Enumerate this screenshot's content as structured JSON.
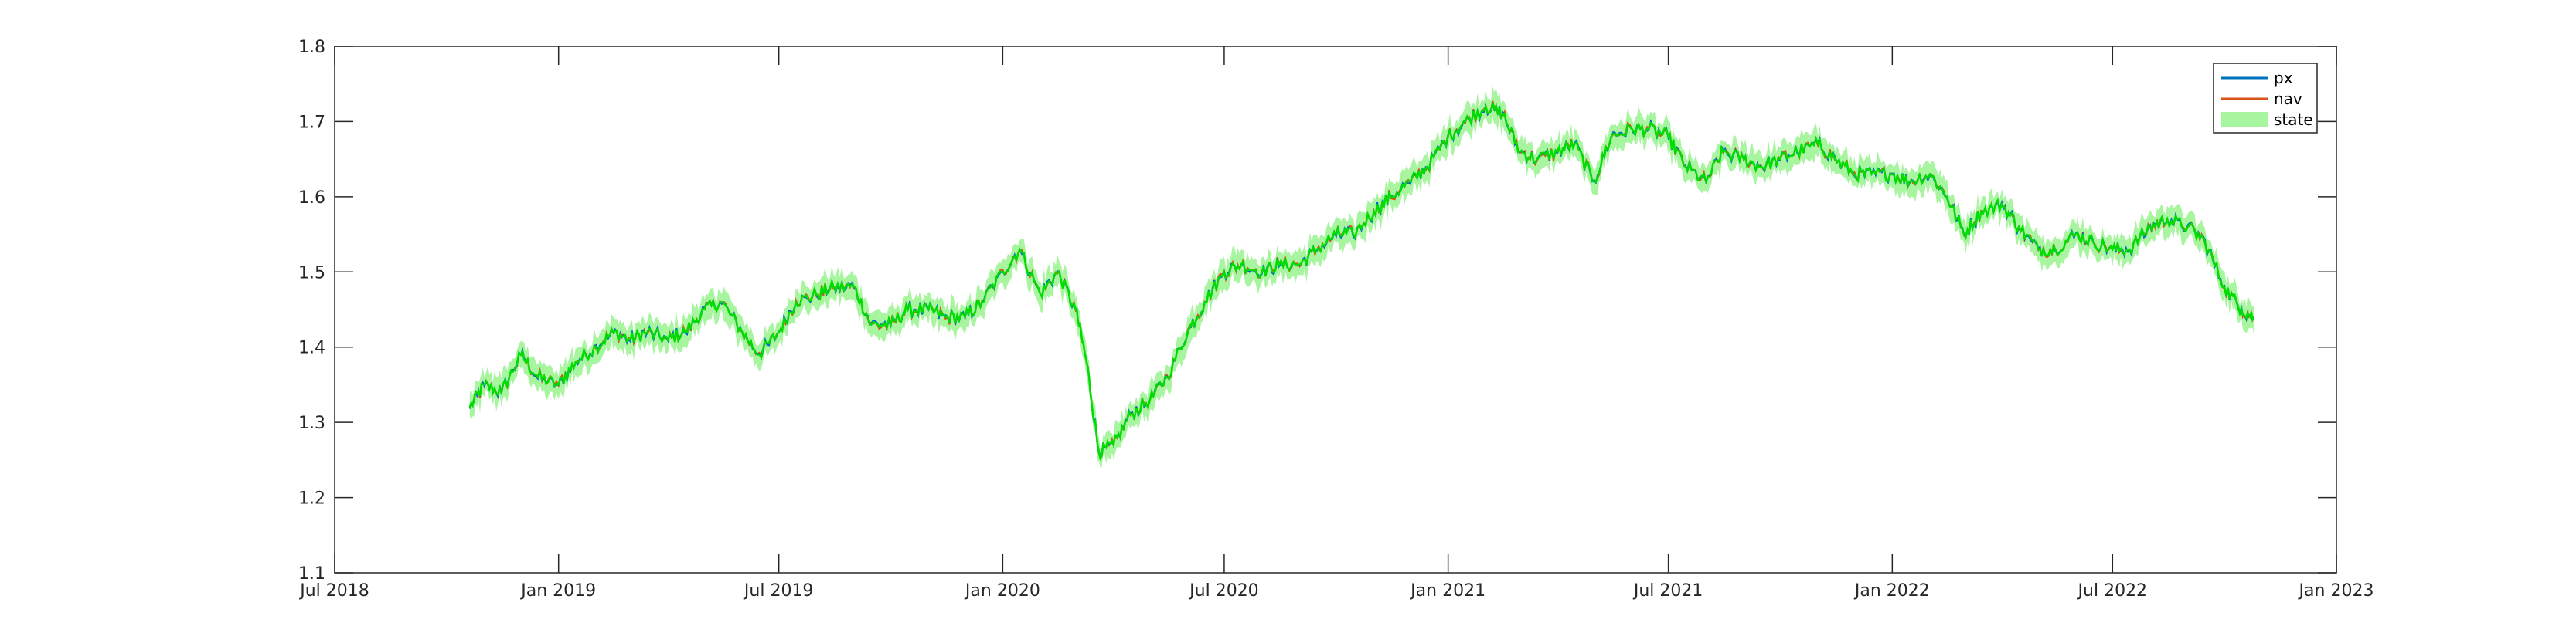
{
  "chart_data": {
    "type": "line",
    "title": "",
    "xlabel": "",
    "ylabel": "",
    "xlim": [
      "2018-07-01",
      "2023-01-01"
    ],
    "ylim": [
      1.1,
      1.8
    ],
    "grid": false,
    "legend_placement": "top-right",
    "x_ticks": [
      {
        "date": "2018-07-01",
        "label": "Jul 2018"
      },
      {
        "date": "2019-01-01",
        "label": "Jan 2019"
      },
      {
        "date": "2019-07-01",
        "label": "Jul 2019"
      },
      {
        "date": "2020-01-01",
        "label": "Jan 2020"
      },
      {
        "date": "2020-07-01",
        "label": "Jul 2020"
      },
      {
        "date": "2021-01-01",
        "label": "Jan 2021"
      },
      {
        "date": "2021-07-01",
        "label": "Jul 2021"
      },
      {
        "date": "2022-01-01",
        "label": "Jan 2022"
      },
      {
        "date": "2022-07-01",
        "label": "Jul 2022"
      },
      {
        "date": "2023-01-01",
        "label": "Jan 2023"
      }
    ],
    "y_ticks": [
      {
        "value": 1.1,
        "label": "1.1"
      },
      {
        "value": 1.2,
        "label": "1.2"
      },
      {
        "value": 1.3,
        "label": "1.3"
      },
      {
        "value": 1.4,
        "label": "1.4"
      },
      {
        "value": 1.5,
        "label": "1.5"
      },
      {
        "value": 1.6,
        "label": "1.6"
      },
      {
        "value": 1.7,
        "label": "1.7"
      },
      {
        "value": 1.8,
        "label": "1.8"
      }
    ],
    "series": [
      {
        "name": "px",
        "kind": "line",
        "color": "#0072BD"
      },
      {
        "name": "nav",
        "kind": "line",
        "color": "#D95319"
      },
      {
        "name": "state",
        "kind": "band",
        "color": "#00DD00",
        "band_color": "#A8F5A0"
      }
    ],
    "points": [
      [
        "2018-10-20",
        1.32
      ],
      [
        "2018-11-01",
        1.35
      ],
      [
        "2018-11-15",
        1.34
      ],
      [
        "2018-12-01",
        1.39
      ],
      [
        "2018-12-15",
        1.36
      ],
      [
        "2019-01-01",
        1.35
      ],
      [
        "2019-01-15",
        1.38
      ],
      [
        "2019-02-01",
        1.4
      ],
      [
        "2019-02-15",
        1.42
      ],
      [
        "2019-03-01",
        1.41
      ],
      [
        "2019-03-15",
        1.42
      ],
      [
        "2019-04-01",
        1.41
      ],
      [
        "2019-04-15",
        1.42
      ],
      [
        "2019-05-01",
        1.45
      ],
      [
        "2019-05-15",
        1.46
      ],
      [
        "2019-06-01",
        1.42
      ],
      [
        "2019-06-15",
        1.39
      ],
      [
        "2019-07-01",
        1.42
      ],
      [
        "2019-07-15",
        1.46
      ],
      [
        "2019-08-01",
        1.47
      ],
      [
        "2019-08-15",
        1.48
      ],
      [
        "2019-09-01",
        1.48
      ],
      [
        "2019-09-15",
        1.43
      ],
      [
        "2019-10-01",
        1.43
      ],
      [
        "2019-10-15",
        1.45
      ],
      [
        "2019-11-01",
        1.45
      ],
      [
        "2019-11-15",
        1.44
      ],
      [
        "2019-12-01",
        1.44
      ],
      [
        "2019-12-15",
        1.46
      ],
      [
        "2020-01-01",
        1.5
      ],
      [
        "2020-01-15",
        1.53
      ],
      [
        "2020-02-01",
        1.47
      ],
      [
        "2020-02-15",
        1.5
      ],
      [
        "2020-03-01",
        1.45
      ],
      [
        "2020-03-10",
        1.38
      ],
      [
        "2020-03-20",
        1.26
      ],
      [
        "2020-04-01",
        1.27
      ],
      [
        "2020-04-15",
        1.31
      ],
      [
        "2020-05-01",
        1.33
      ],
      [
        "2020-05-15",
        1.36
      ],
      [
        "2020-06-01",
        1.42
      ],
      [
        "2020-06-15",
        1.46
      ],
      [
        "2020-07-01",
        1.5
      ],
      [
        "2020-07-15",
        1.51
      ],
      [
        "2020-08-01",
        1.5
      ],
      [
        "2020-08-15",
        1.51
      ],
      [
        "2020-09-01",
        1.51
      ],
      [
        "2020-09-15",
        1.53
      ],
      [
        "2020-10-01",
        1.55
      ],
      [
        "2020-10-15",
        1.55
      ],
      [
        "2020-11-01",
        1.58
      ],
      [
        "2020-11-15",
        1.6
      ],
      [
        "2020-12-01",
        1.62
      ],
      [
        "2020-12-15",
        1.64
      ],
      [
        "2021-01-01",
        1.68
      ],
      [
        "2021-01-15",
        1.7
      ],
      [
        "2021-02-01",
        1.72
      ],
      [
        "2021-02-15",
        1.71
      ],
      [
        "2021-03-01",
        1.66
      ],
      [
        "2021-03-15",
        1.65
      ],
      [
        "2021-04-01",
        1.66
      ],
      [
        "2021-04-15",
        1.67
      ],
      [
        "2021-05-01",
        1.62
      ],
      [
        "2021-05-15",
        1.68
      ],
      [
        "2021-06-01",
        1.69
      ],
      [
        "2021-06-15",
        1.69
      ],
      [
        "2021-07-01",
        1.68
      ],
      [
        "2021-07-15",
        1.64
      ],
      [
        "2021-08-01",
        1.62
      ],
      [
        "2021-08-15",
        1.66
      ],
      [
        "2021-09-01",
        1.65
      ],
      [
        "2021-09-15",
        1.64
      ],
      [
        "2021-10-01",
        1.65
      ],
      [
        "2021-10-15",
        1.66
      ],
      [
        "2021-11-01",
        1.67
      ],
      [
        "2021-11-15",
        1.65
      ],
      [
        "2021-12-01",
        1.63
      ],
      [
        "2021-12-15",
        1.63
      ],
      [
        "2022-01-01",
        1.63
      ],
      [
        "2022-01-15",
        1.62
      ],
      [
        "2022-02-01",
        1.63
      ],
      [
        "2022-02-15",
        1.6
      ],
      [
        "2022-03-01",
        1.55
      ],
      [
        "2022-03-15",
        1.58
      ],
      [
        "2022-04-01",
        1.59
      ],
      [
        "2022-04-15",
        1.56
      ],
      [
        "2022-05-01",
        1.53
      ],
      [
        "2022-05-15",
        1.53
      ],
      [
        "2022-06-01",
        1.55
      ],
      [
        "2022-06-15",
        1.54
      ],
      [
        "2022-07-01",
        1.53
      ],
      [
        "2022-07-15",
        1.53
      ],
      [
        "2022-08-01",
        1.56
      ],
      [
        "2022-08-15",
        1.57
      ],
      [
        "2022-09-01",
        1.56
      ],
      [
        "2022-09-15",
        1.54
      ],
      [
        "2022-10-01",
        1.48
      ],
      [
        "2022-10-15",
        1.45
      ],
      [
        "2022-10-25",
        1.44
      ]
    ],
    "band_halfwidth": 0.015
  }
}
